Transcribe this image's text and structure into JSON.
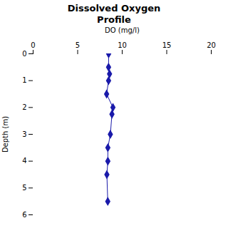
{
  "chart_data": {
    "type": "line",
    "title": "Dissolved Oxygen\nProfile",
    "x_label": "DO (mg/l)",
    "y_label": "Depth (m)",
    "x": [
      8.48,
      8.47,
      8.58,
      8.47,
      8.25,
      8.96,
      8.85,
      8.67,
      8.39,
      8.39,
      8.28,
      8.38
    ],
    "values": [
      0.0,
      0.5,
      0.75,
      1.0,
      1.5,
      2.0,
      2.25,
      3.0,
      3.5,
      4.0,
      4.5,
      5.5
    ],
    "color": "#1a1aaa",
    "marker": "diamond",
    "xlim": [
      0,
      20
    ],
    "ylim": [
      6,
      0
    ],
    "xticks": [
      0,
      5,
      10,
      15,
      20
    ],
    "yticks": [
      0,
      1,
      2,
      3,
      4,
      5,
      6
    ],
    "grid": false
  }
}
